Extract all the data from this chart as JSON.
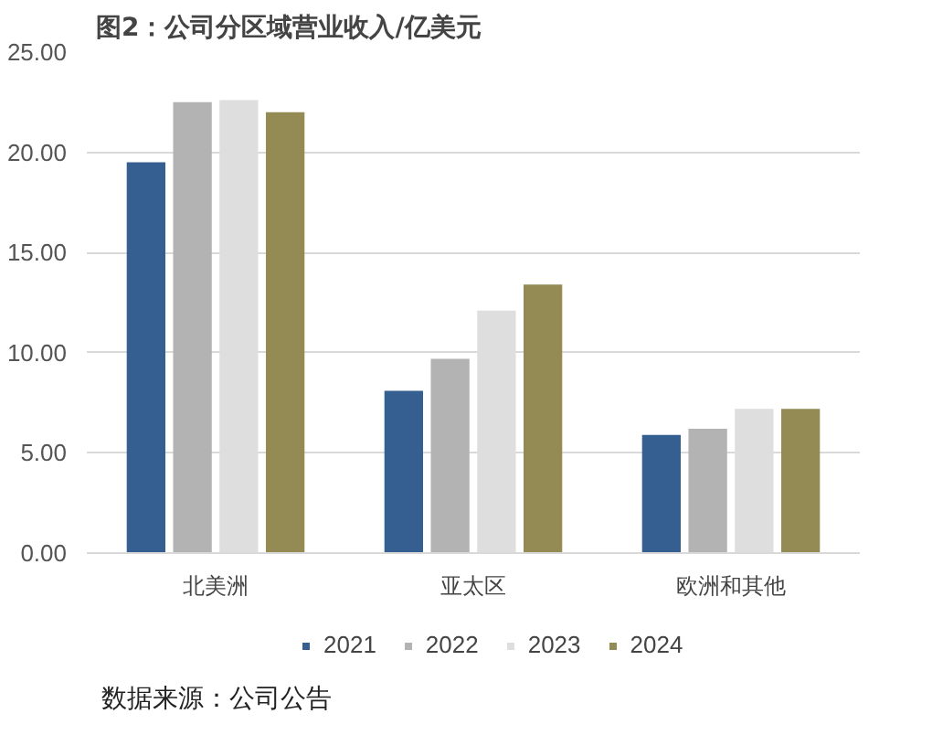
{
  "chart_data": {
    "type": "bar",
    "title": "图2：公司分区域营业收入/亿美元",
    "categories": [
      "北美洲",
      "亚太区",
      "欧洲和其他"
    ],
    "series": [
      {
        "name": "2021",
        "color": "#365f91",
        "values": [
          19.5,
          8.1,
          5.9
        ]
      },
      {
        "name": "2022",
        "color": "#b3b3b3",
        "values": [
          22.5,
          9.7,
          6.2
        ]
      },
      {
        "name": "2023",
        "color": "#dedede",
        "values": [
          22.6,
          12.1,
          7.2
        ]
      },
      {
        "name": "2024",
        "color": "#948a54",
        "values": [
          22.0,
          13.4,
          7.2
        ]
      }
    ],
    "ylim": [
      0,
      25
    ],
    "yticks": [
      {
        "value": 0,
        "label": "0.00"
      },
      {
        "value": 5,
        "label": "5.00"
      },
      {
        "value": 10,
        "label": "10.00"
      },
      {
        "value": 15,
        "label": "15.00"
      },
      {
        "value": 20,
        "label": "20.00"
      },
      {
        "value": 25,
        "label": "25.00"
      }
    ],
    "grid": "y",
    "legend": "bottom",
    "annotations": [
      "数据来源：公司公告"
    ]
  }
}
